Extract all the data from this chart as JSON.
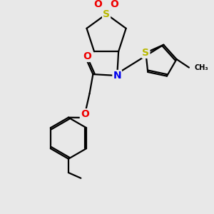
{
  "background_color": "#e8e8e8",
  "atom_colors": {
    "S": "#b8b800",
    "N": "#0000ee",
    "O": "#ee0000",
    "C": "#000000"
  },
  "bond_color": "#000000",
  "bond_width": 1.6,
  "figsize": [
    3.0,
    3.0
  ],
  "dpi": 100,
  "font_size": 9
}
